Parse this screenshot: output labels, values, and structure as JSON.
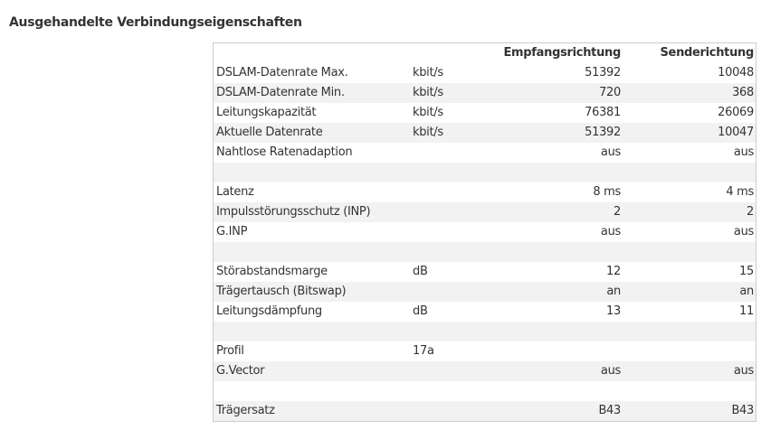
{
  "title": "Ausgehandelte Verbindungseigenschaften",
  "table": {
    "header": {
      "down": "Empfangsrichtung",
      "up": "Senderichtung"
    },
    "rows": [
      {
        "label": "DSLAM-Datenrate Max.",
        "unit": "kbit/s",
        "down": "51392",
        "up": "10048"
      },
      {
        "label": "DSLAM-Datenrate Min.",
        "unit": "kbit/s",
        "down": "720",
        "up": "368"
      },
      {
        "label": "Leitungskapazität",
        "unit": "kbit/s",
        "down": "76381",
        "up": "26069"
      },
      {
        "label": "Aktuelle Datenrate",
        "unit": "kbit/s",
        "down": "51392",
        "up": "10047"
      },
      {
        "label": "Nahtlose Ratenadaption",
        "down": "aus",
        "up": "aus"
      },
      {},
      {
        "label": "Latenz",
        "down": "8 ms",
        "up": "4 ms"
      },
      {
        "label": "Impulsstörungsschutz (INP)",
        "down": "2",
        "up": "2"
      },
      {
        "label": "G.INP",
        "down": "aus",
        "up": "aus"
      },
      {},
      {
        "label": "Störabstandsmarge",
        "unit": "dB",
        "down": "12",
        "up": "15"
      },
      {
        "label": "Trägertausch (Bitswap)",
        "down": "an",
        "up": "an"
      },
      {
        "label": "Leitungsdämpfung",
        "unit": "dB",
        "down": "13",
        "up": "11"
      },
      {},
      {
        "label": "Profil",
        "unit": "17a"
      },
      {
        "label": "G.Vector",
        "down": "aus",
        "up": "aus"
      },
      {},
      {
        "label": "Trägersatz",
        "down": "B43",
        "up": "B43"
      }
    ]
  }
}
